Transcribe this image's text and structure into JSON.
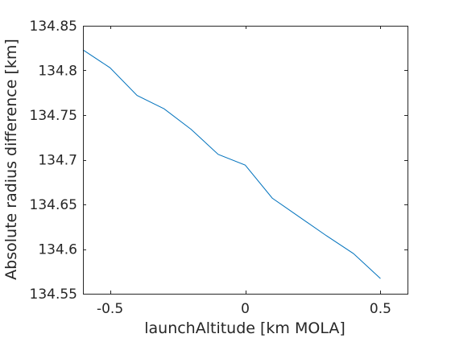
{
  "chart_data": {
    "type": "line",
    "title": "",
    "xlabel": "launchAltitude [km MOLA]",
    "ylabel": "Absolute radius difference [km]",
    "xlim": [
      -0.6,
      0.6
    ],
    "ylim": [
      134.55,
      134.85
    ],
    "xticks": [
      -0.5,
      0,
      0.5
    ],
    "xtick_labels": [
      "-0.5",
      "0",
      "0.5"
    ],
    "yticks": [
      134.55,
      134.6,
      134.65,
      134.7,
      134.75,
      134.8,
      134.85
    ],
    "ytick_labels": [
      "134.55",
      "134.6",
      "134.65",
      "134.7",
      "134.75",
      "134.8",
      "134.85"
    ],
    "grid": false,
    "box": true,
    "series": [
      {
        "color": "#0072BD",
        "x": [
          -0.6,
          -0.5,
          -0.4,
          -0.3,
          -0.2,
          -0.1,
          0.0,
          0.1,
          0.2,
          0.3,
          0.4,
          0.5
        ],
        "y": [
          134.823,
          134.803,
          134.772,
          134.757,
          134.734,
          134.706,
          134.694,
          134.657,
          134.636,
          134.615,
          134.595,
          134.567
        ]
      }
    ]
  }
}
